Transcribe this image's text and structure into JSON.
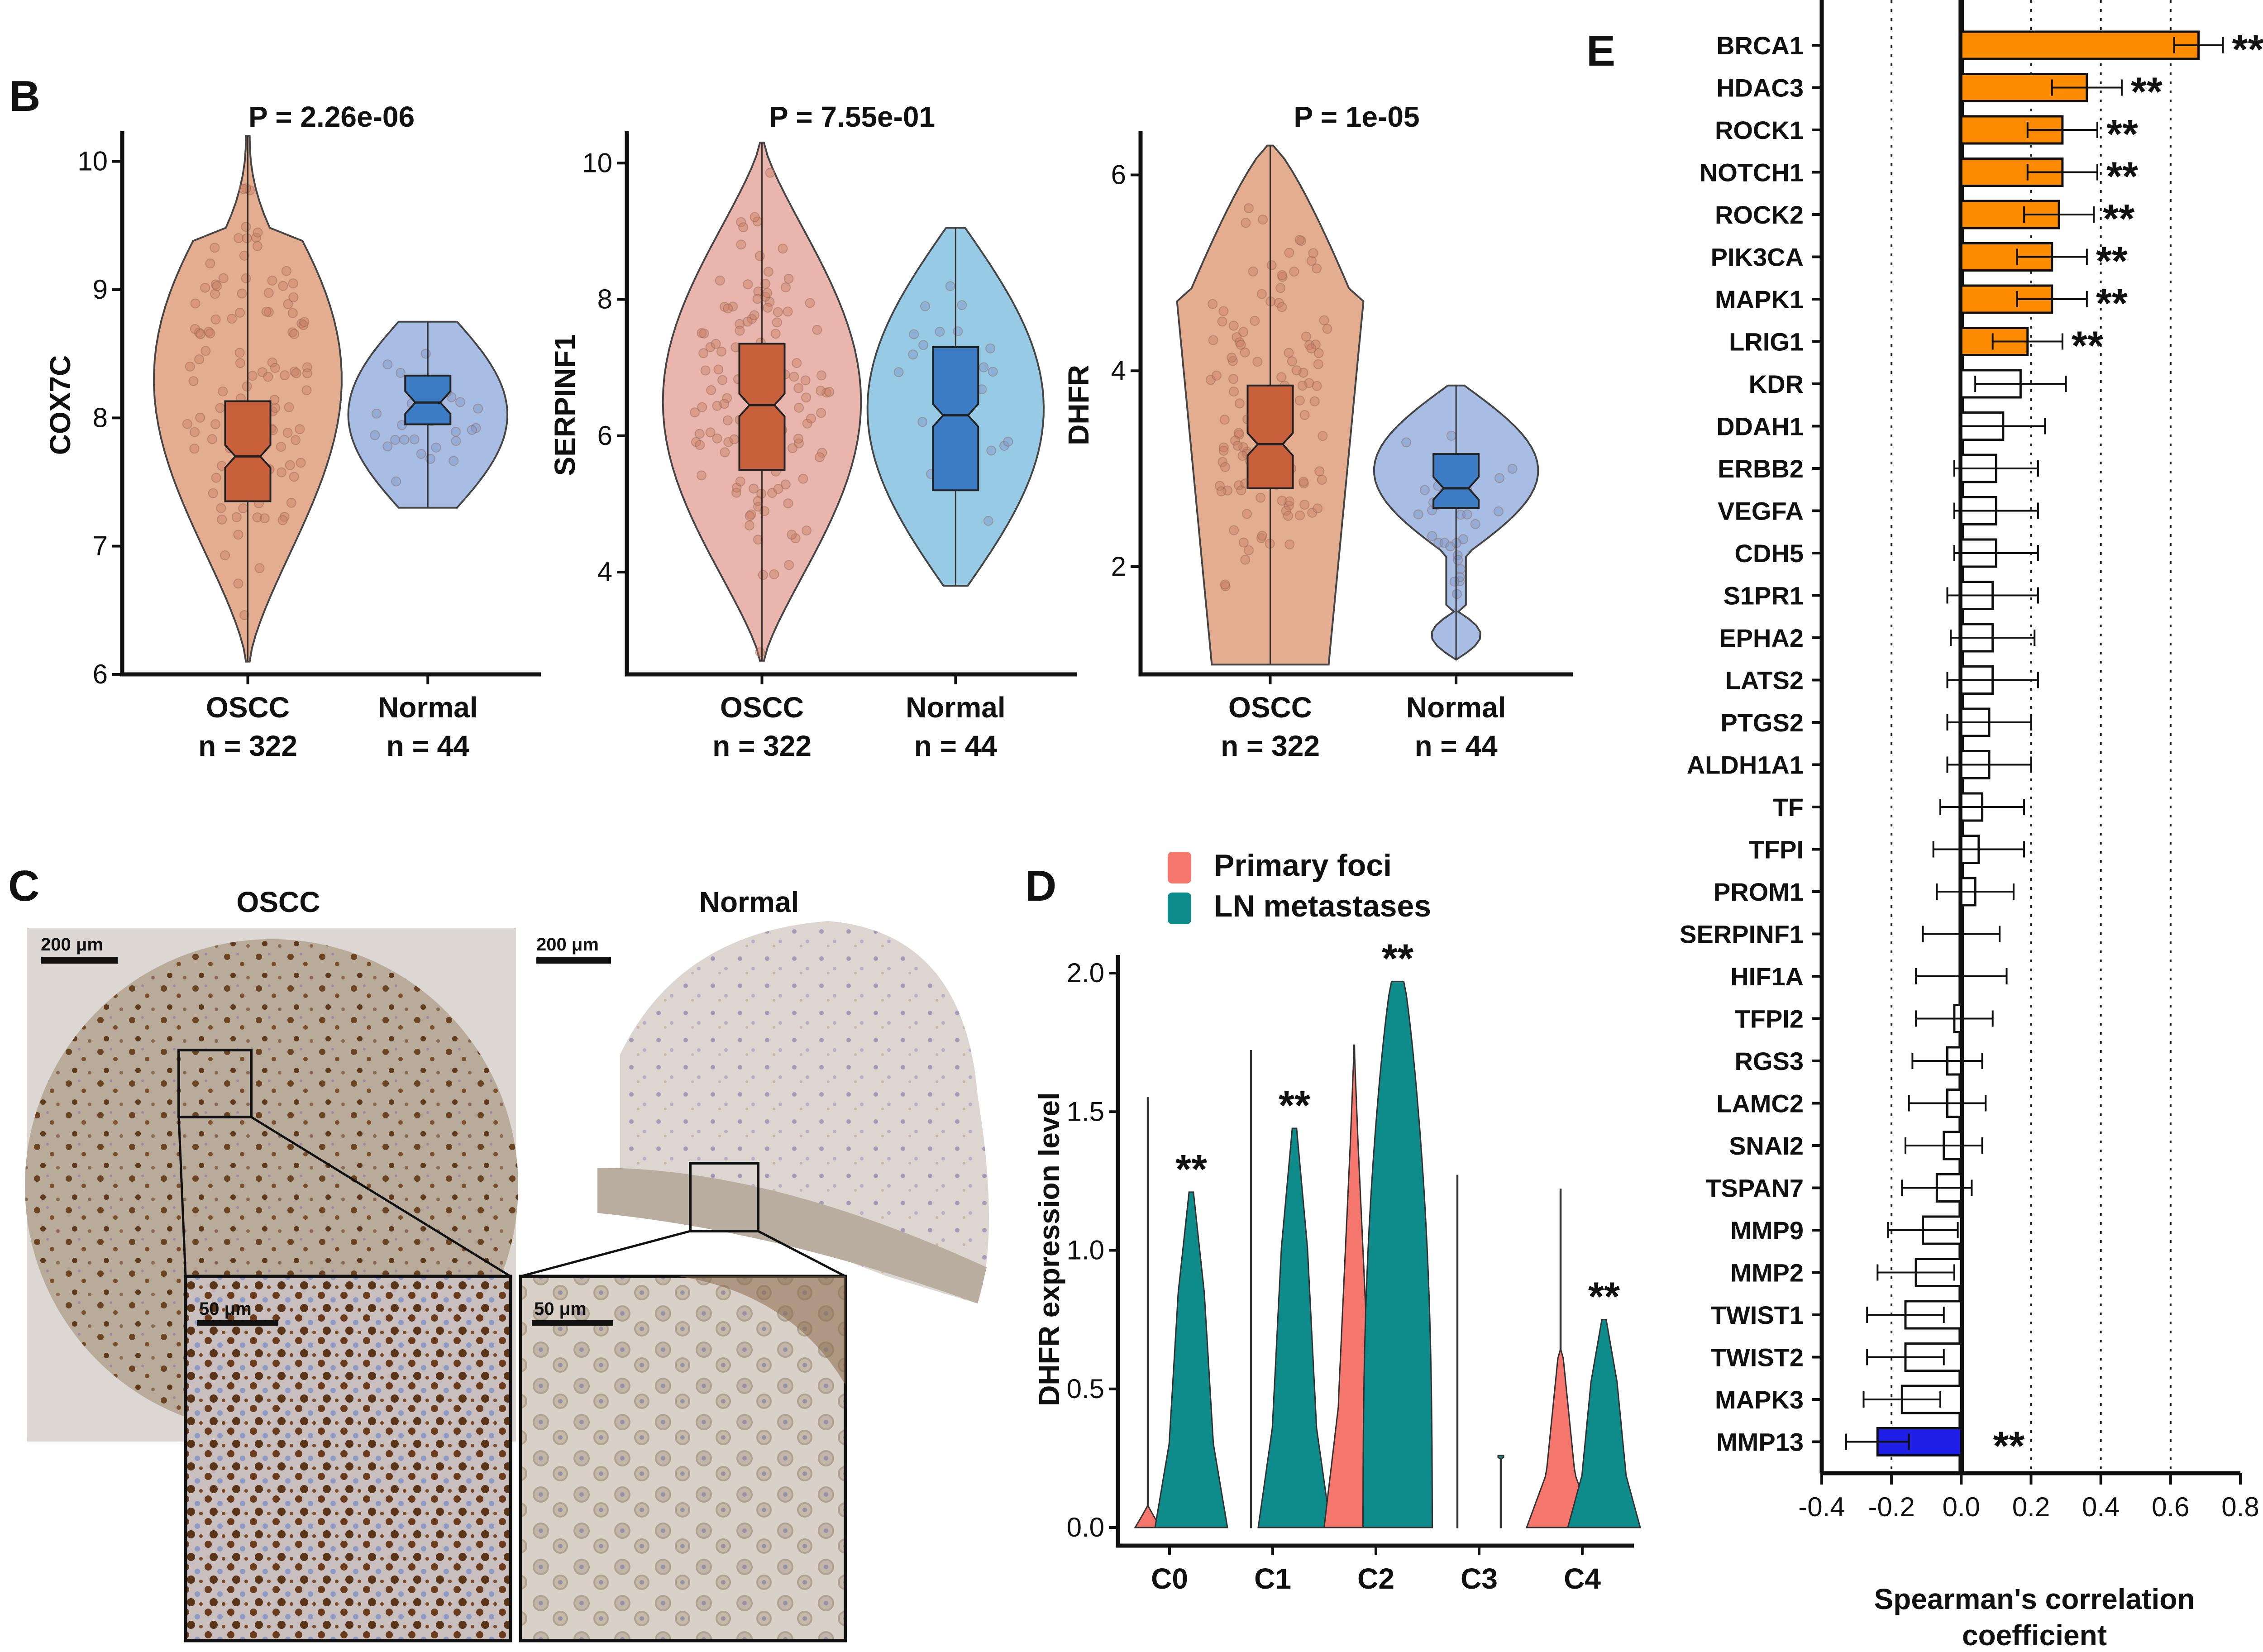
{
  "panels": {
    "B": "B",
    "C": "C",
    "D": "D",
    "E": "E"
  },
  "colors": {
    "oscc_violin": "#e3a585",
    "oscc_box": "#c9603c",
    "normal_violin": "#9fb6e0",
    "normal_box": "#3b7cc4",
    "serpinf1_oscc": "#e8ada4",
    "serpinf1_normal": "#8cc6e3",
    "primary_foci": "#f4766d",
    "ln_metastases": "#0e8b8b",
    "positive_sig": "#ff8c00",
    "negative_sig": "#1f1fe8",
    "nonsig": "#ffffff"
  },
  "panel_B": [
    {
      "gene": "COX7C",
      "pvalue": "P = 2.26e-06",
      "ylim": [
        6,
        10.2
      ],
      "yticks": [
        "6",
        "7",
        "8",
        "9",
        "10"
      ],
      "groups": [
        {
          "name": "OSCC",
          "n": "n = 322",
          "box": {
            "q1": 7.35,
            "median": 7.7,
            "q3": 8.13
          },
          "min": 6.1,
          "max": 10.2
        },
        {
          "name": "Normal",
          "n": "n = 44",
          "box": {
            "q1": 7.95,
            "median": 8.12,
            "q3": 8.33
          },
          "min": 7.3,
          "max": 8.75
        }
      ]
    },
    {
      "gene": "SERPINF1",
      "pvalue": "P = 7.55e-01",
      "ylim": [
        2.5,
        10.4
      ],
      "yticks": [
        "4",
        "6",
        "8",
        "10"
      ],
      "groups": [
        {
          "name": "OSCC",
          "n": "n = 322",
          "box": {
            "q1": 5.5,
            "median": 6.45,
            "q3": 7.35
          },
          "min": 2.7,
          "max": 10.3
        },
        {
          "name": "Normal",
          "n": "n = 44",
          "box": {
            "q1": 5.2,
            "median": 6.3,
            "q3": 7.3
          },
          "min": 3.8,
          "max": 9.05
        }
      ]
    },
    {
      "gene": "DHFR",
      "pvalue": "P = 1e-05",
      "ylim": [
        0.9,
        6.4
      ],
      "yticks": [
        "2",
        "4",
        "6"
      ],
      "groups": [
        {
          "name": "OSCC",
          "n": "n = 322",
          "box": {
            "q1": 2.8,
            "median": 3.25,
            "q3": 3.85
          },
          "min": 1.0,
          "max": 6.3
        },
        {
          "name": "Normal",
          "n": "n = 44",
          "box": {
            "q1": 2.6,
            "median": 2.8,
            "q3": 3.15
          },
          "min": 1.05,
          "max": 3.85
        }
      ]
    }
  ],
  "panel_C": {
    "left_title": "OSCC",
    "right_title": "Normal",
    "scale_big": "200 μm",
    "scale_small": "50 μm"
  },
  "chart_data": [
    {
      "type": "violin",
      "panel": "D",
      "ylabel": "DHFR expression level",
      "ylim": [
        0,
        2.0
      ],
      "yticks": [
        "0.0",
        "0.5",
        "1.0",
        "1.5",
        "2.0"
      ],
      "categories": [
        "C0",
        "C1",
        "C2",
        "C3",
        "C4"
      ],
      "series": [
        {
          "name": "Primary foci",
          "max": [
            1.55,
            1.72,
            1.74,
            1.27,
            1.22
          ]
        },
        {
          "name": "LN metastases",
          "max": [
            1.21,
            1.44,
            1.97,
            0.26,
            0.75
          ]
        }
      ],
      "significance": [
        "**",
        "**",
        "**",
        "",
        "**"
      ]
    },
    {
      "type": "bar",
      "panel": "E",
      "xlabel": "Spearman's correlation coefficient",
      "xlim": [
        -0.4,
        0.8
      ],
      "xticks": [
        "-0.4",
        "-0.2",
        "0.0",
        "0.2",
        "0.4",
        "0.6",
        "0.8"
      ],
      "categories": [
        "BRCA1",
        "HDAC3",
        "ROCK1",
        "NOTCH1",
        "ROCK2",
        "PIK3CA",
        "MAPK1",
        "LRIG1",
        "KDR",
        "DDAH1",
        "ERBB2",
        "VEGFA",
        "CDH5",
        "S1PR1",
        "EPHA2",
        "LATS2",
        "PTGS2",
        "ALDH1A1",
        "TF",
        "TFPI",
        "PROM1",
        "SERPINF1",
        "HIF1A",
        "TFPI2",
        "RGS3",
        "LAMC2",
        "SNAI2",
        "TSPAN7",
        "MMP9",
        "MMP2",
        "TWIST1",
        "TWIST2",
        "MAPK3",
        "MMP13"
      ],
      "values": [
        0.68,
        0.36,
        0.29,
        0.29,
        0.28,
        0.26,
        0.26,
        0.19,
        0.17,
        0.12,
        0.1,
        0.1,
        0.1,
        0.09,
        0.09,
        0.09,
        0.08,
        0.08,
        0.06,
        0.05,
        0.04,
        0.0,
        0.0,
        -0.02,
        -0.04,
        -0.04,
        -0.05,
        -0.07,
        -0.11,
        -0.13,
        -0.16,
        -0.16,
        -0.17,
        -0.24
      ],
      "errors": [
        0.07,
        0.1,
        0.1,
        0.1,
        0.1,
        0.1,
        0.1,
        0.1,
        0.13,
        0.12,
        0.12,
        0.12,
        0.12,
        0.13,
        0.12,
        0.13,
        0.12,
        0.12,
        0.12,
        0.13,
        0.11,
        0.11,
        0.13,
        0.11,
        0.1,
        0.11,
        0.11,
        0.1,
        0.1,
        0.11,
        0.11,
        0.11,
        0.11,
        0.09
      ],
      "significance": [
        "**",
        "**",
        "**",
        "**",
        "**",
        "**",
        "**",
        "**",
        "",
        "",
        "",
        "",
        "",
        "",
        "",
        "",
        "",
        "",
        "",
        "",
        "",
        "",
        "",
        "",
        "",
        "",
        "",
        "",
        "",
        "",
        "",
        "",
        "",
        "**"
      ]
    }
  ]
}
